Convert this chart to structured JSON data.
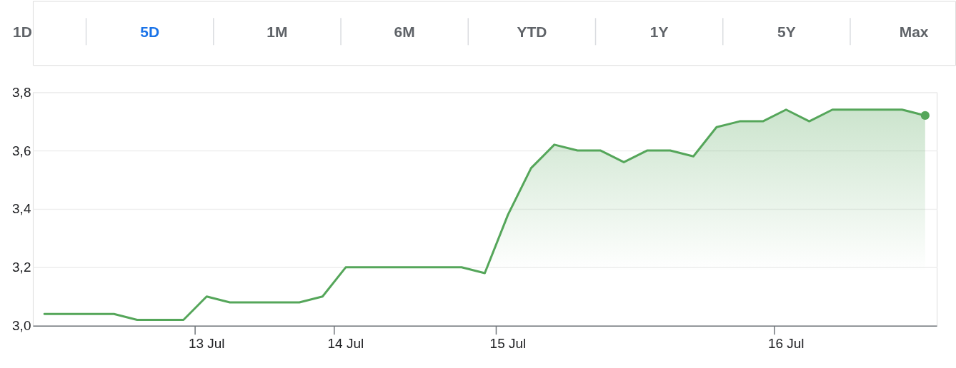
{
  "chart_data": [
    {
      "type": "other",
      "categories": [
        "1D",
        "5D",
        "1M",
        "6M",
        "YTD",
        "1Y",
        "5Y",
        "Max"
      ],
      "colors": [
        "#5f6368",
        "#1a73e8",
        "#5f6368",
        "#5f6368",
        "#5f6368",
        "#5f6368",
        "#5f6368",
        "#5f6368"
      ]
    },
    {
      "type": "area",
      "categories": [
        null,
        null,
        null,
        null,
        null,
        null,
        null,
        "13 Jul",
        null,
        null,
        null,
        null,
        null,
        "14 Jul",
        null,
        null,
        null,
        null,
        null,
        null,
        "15 Jul",
        null,
        null,
        null,
        null,
        null,
        null,
        null,
        null,
        null,
        null,
        null,
        "16 Jul",
        null,
        null,
        null,
        null,
        null,
        null
      ],
      "series": [
        {
          "color": "#55a65a",
          "values": [
            3.04,
            3.04,
            3.04,
            3.04,
            3.02,
            3.02,
            3.02,
            3.1,
            3.08,
            3.08,
            3.08,
            3.08,
            3.1,
            3.2,
            3.2,
            3.2,
            3.2,
            3.2,
            3.2,
            3.18,
            3.38,
            3.54,
            3.62,
            3.6,
            3.6,
            3.56,
            3.6,
            3.6,
            3.58,
            3.68,
            3.7,
            3.7,
            3.74,
            3.7,
            3.74,
            3.74,
            3.74,
            3.74,
            3.72
          ]
        },
        {
          "type": "scatter",
          "color": "#55a65a",
          "values": [
            null,
            null,
            null,
            null,
            null,
            null,
            null,
            null,
            null,
            null,
            null,
            null,
            null,
            null,
            null,
            null,
            null,
            null,
            null,
            null,
            null,
            null,
            null,
            null,
            null,
            null,
            null,
            null,
            null,
            null,
            null,
            null,
            null,
            null,
            null,
            null,
            null,
            null,
            3.72
          ]
        }
      ],
      "ylim": [
        3.0,
        3.8
      ],
      "yticks": [
        {
          "value": 3.0,
          "label": "3,0"
        },
        {
          "value": 3.2,
          "label": "3,2"
        },
        {
          "value": 3.4,
          "label": "3,4"
        },
        {
          "value": 3.6,
          "label": "3,6"
        },
        {
          "value": 3.8,
          "label": "3,8"
        }
      ],
      "grid": "y"
    }
  ]
}
